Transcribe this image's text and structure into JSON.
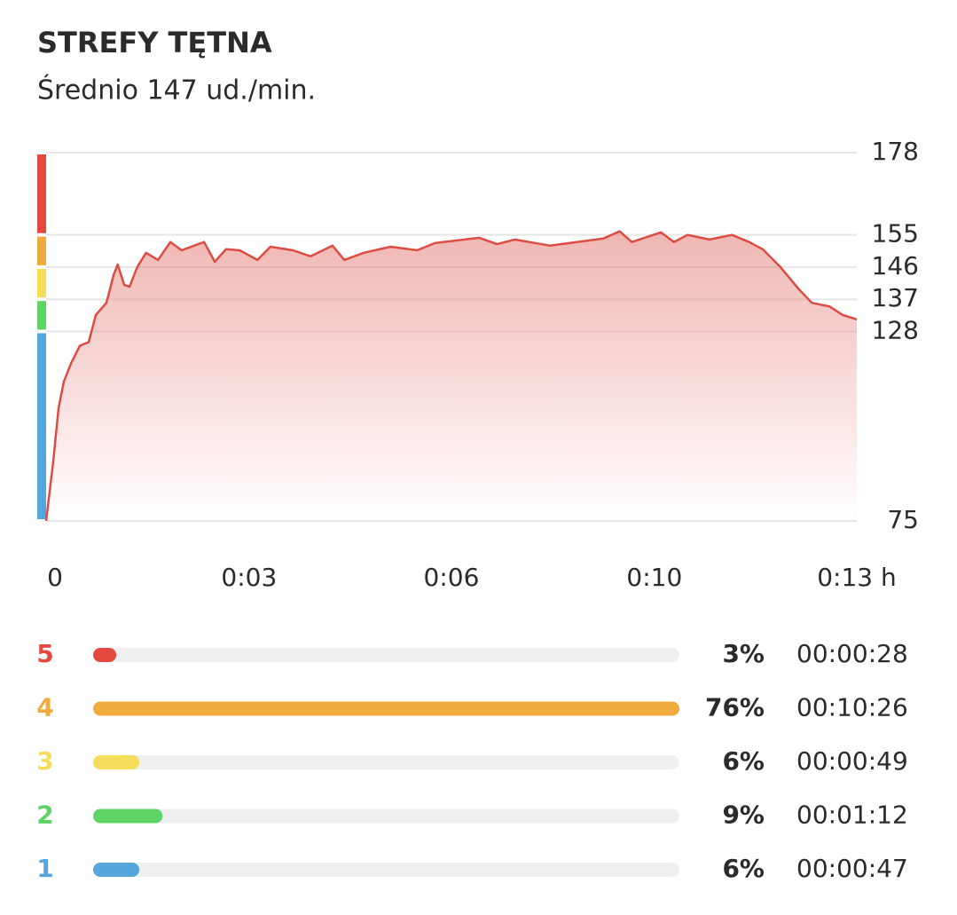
{
  "header": {
    "title": "STREFY TĘTNA",
    "subtitle": "Średnio 147 ud./min."
  },
  "chart_data": [
    {
      "type": "line",
      "color": "#dd4c42",
      "x": [
        0,
        0.12,
        0.21,
        0.3,
        0.42,
        0.57,
        0.72,
        0.84,
        1.02,
        1.14,
        1.21,
        1.32,
        1.41,
        1.54,
        1.69,
        1.89,
        2.1,
        2.29,
        2.67,
        2.85,
        3.04,
        3.27,
        3.57,
        3.79,
        4.17,
        4.47,
        4.84,
        5.04,
        5.37,
        5.82,
        6.27,
        6.57,
        7.32,
        7.62,
        7.92,
        8.52,
        8.97,
        9.42,
        9.69,
        9.9,
        10.39,
        10.61,
        10.84,
        11.21,
        11.59,
        11.88,
        12.11,
        12.41,
        12.71,
        12.94,
        13.24,
        13.46,
        13.7
      ],
      "values": [
        75,
        91.6,
        106.5,
        114,
        119,
        124,
        125,
        132.6,
        136,
        143.8,
        146.7,
        141,
        140.5,
        146,
        150,
        148,
        153,
        150.7,
        153,
        147.5,
        151,
        150.7,
        148,
        151.7,
        150.7,
        149,
        152,
        148,
        150,
        151.7,
        150.7,
        152.7,
        154.2,
        152.4,
        153.7,
        152,
        153,
        154,
        156,
        153,
        155.7,
        153,
        155,
        153.7,
        155,
        153,
        151,
        146,
        140,
        136,
        135,
        132.6,
        131.4
      ],
      "xlim": [
        0,
        13.7
      ],
      "xticks": [
        0,
        {
          "value": 3.43,
          "label": "0:03"
        },
        {
          "value": 6.85,
          "label": "0:06"
        },
        {
          "value": 10.28,
          "label": "0:10"
        },
        {
          "value": 13.7,
          "label": "0:13 h"
        }
      ],
      "ylim": [
        75,
        178
      ],
      "yticks": [
        178,
        155,
        146,
        137,
        128,
        75
      ],
      "band_colors": [
        "#e5483d",
        "#f0ab3e",
        "#f5dc5a",
        "#5dd465",
        "#56a6de"
      ],
      "grid": true
    },
    {
      "type": "hbar",
      "categories": [
        "5",
        "4",
        "3",
        "2",
        "1"
      ],
      "values": [
        3,
        76,
        6,
        9,
        6
      ],
      "value_labels": [
        "3%",
        "76%",
        "6%",
        "9%",
        "6%"
      ],
      "times": [
        "00:00:28",
        "00:10:26",
        "00:00:49",
        "00:01:12",
        "00:00:47"
      ],
      "colors": [
        "#e5483d",
        "#f0ab3e",
        "#f5dc5a",
        "#5dd465",
        "#56a6de"
      ],
      "xlim": [
        0,
        76
      ]
    }
  ]
}
